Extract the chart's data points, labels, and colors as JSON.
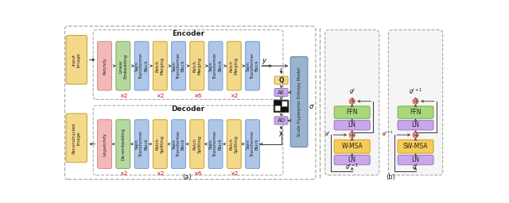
{
  "bg_color": "#ffffff",
  "fig_label_a": "(a)",
  "fig_label_b": "(b)",
  "encoder_title": "Encoder",
  "decoder_title": "Decoder",
  "colors": {
    "pink": "#f4b8b8",
    "green": "#b5d8a0",
    "blue": "#aec6e8",
    "yellow": "#f5d98b",
    "purple_light": "#d4b8e8",
    "outline_gray": "#888888",
    "dashed_gray": "#aaaaaa",
    "red_text": "#cc0000",
    "add_pink": "#f09090",
    "add_pink_ec": "#cc5555",
    "ffn_green": "#a8d87a",
    "ffn_green_ec": "#77aa55",
    "ln_purple": "#c8a8e8",
    "ln_purple_ec": "#9977bb",
    "msa_yellow": "#f5cc55",
    "msa_yellow_ec": "#c8a020",
    "entropy_blue": "#9ab4cf",
    "entropy_blue_ec": "#6688aa",
    "img_yellow": "#f5d98b",
    "img_yellow_ec": "#c8a840"
  }
}
